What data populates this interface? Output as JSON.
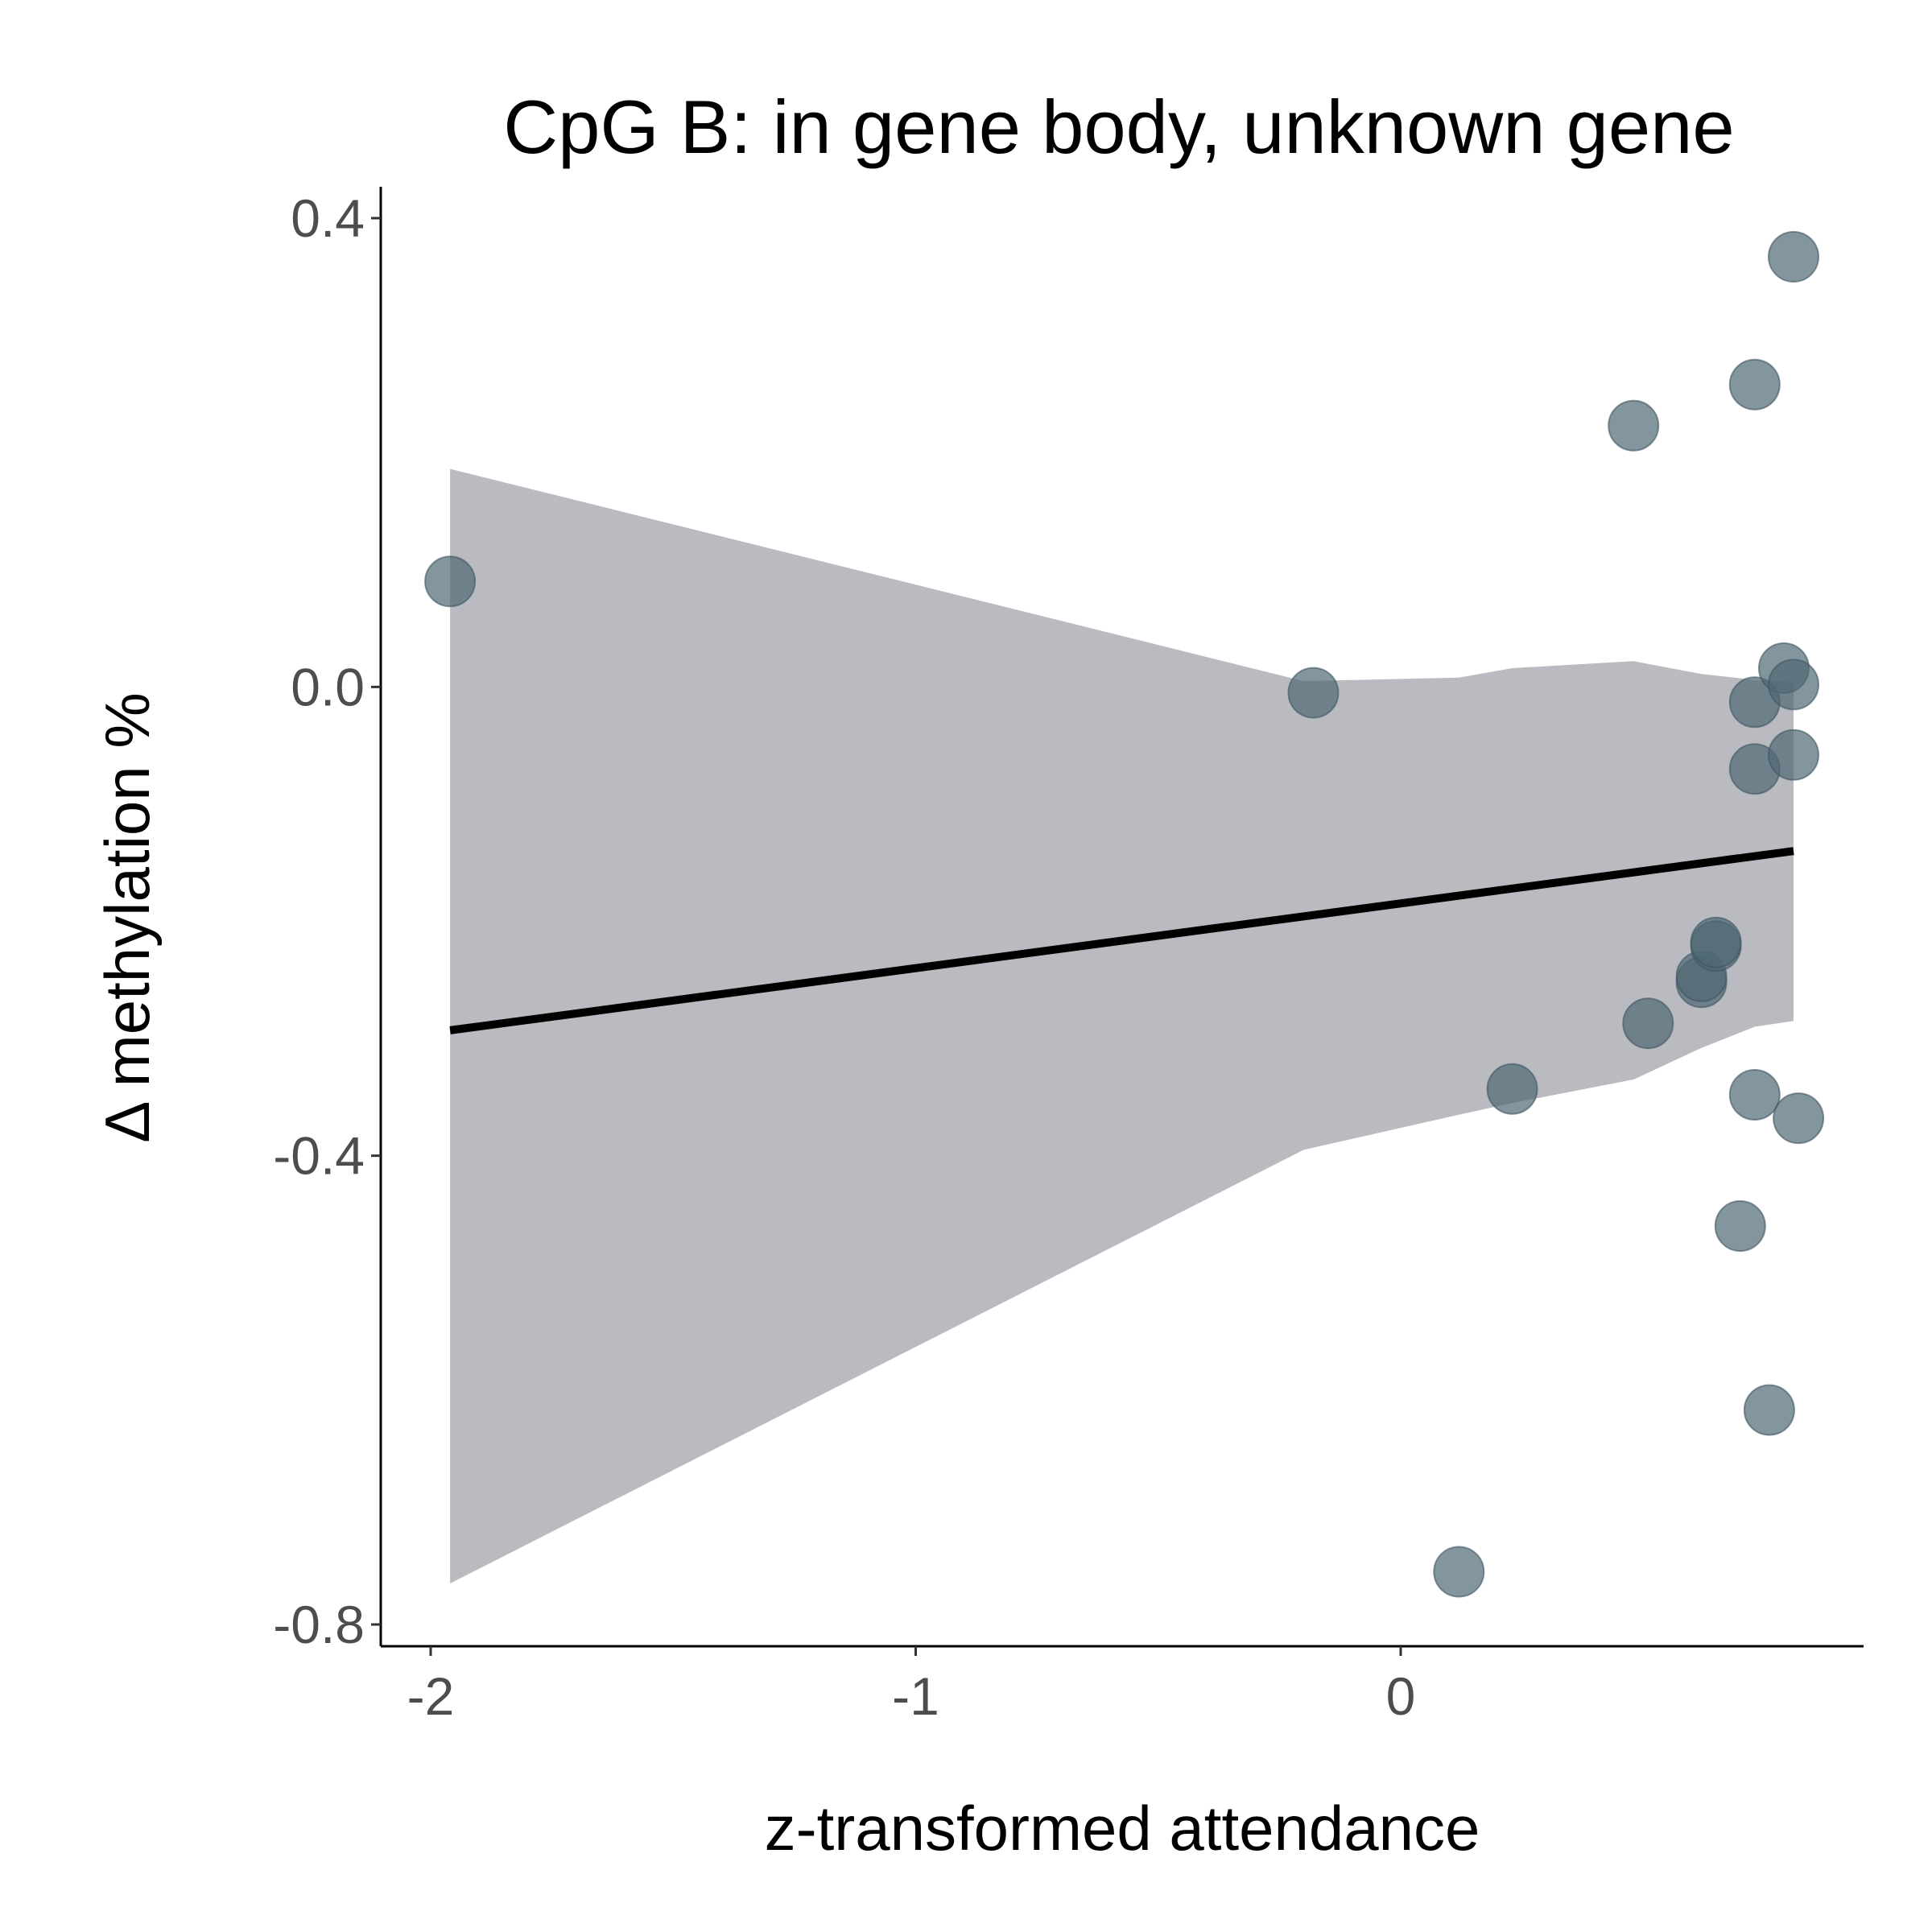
{
  "chart_data": {
    "type": "scatter",
    "title": "CpG B: in gene body, unknown gene",
    "xlabel": "z-transformed attendance",
    "ylabel": "Δ methylation %",
    "xlim": [
      -2.1,
      0.95
    ],
    "ylim": [
      -0.827,
      0.42
    ],
    "x_ticks": [
      {
        "value": -2,
        "label": "-2"
      },
      {
        "value": -1,
        "label": "-1"
      },
      {
        "value": 0,
        "label": "0"
      }
    ],
    "y_ticks": [
      {
        "value": 0.4,
        "label": "0.4"
      },
      {
        "value": 0.0,
        "label": "0.0"
      },
      {
        "value": -0.4,
        "label": "-0.4"
      },
      {
        "value": -0.8,
        "label": "-0.8"
      }
    ],
    "grid": false,
    "legend": "none",
    "colors": {
      "points": "#4f6874",
      "fit_line": "#000000",
      "confidence_band": "#babbc0"
    },
    "points": [
      {
        "x": -1.96,
        "y": 0.09
      },
      {
        "x": -0.18,
        "y": -0.005
      },
      {
        "x": 0.12,
        "y": -0.755
      },
      {
        "x": 0.23,
        "y": -0.343
      },
      {
        "x": 0.48,
        "y": 0.223
      },
      {
        "x": 0.51,
        "y": -0.287
      },
      {
        "x": 0.62,
        "y": -0.252
      },
      {
        "x": 0.62,
        "y": -0.247
      },
      {
        "x": 0.65,
        "y": -0.221
      },
      {
        "x": 0.65,
        "y": -0.218
      },
      {
        "x": 0.7,
        "y": -0.46
      },
      {
        "x": 0.73,
        "y": 0.258
      },
      {
        "x": 0.73,
        "y": -0.013
      },
      {
        "x": 0.73,
        "y": -0.07
      },
      {
        "x": 0.73,
        "y": -0.348
      },
      {
        "x": 0.76,
        "y": -0.617
      },
      {
        "x": 0.79,
        "y": 0.016
      },
      {
        "x": 0.81,
        "y": 0.367
      },
      {
        "x": 0.81,
        "y": 0.002
      },
      {
        "x": 0.81,
        "y": -0.058
      },
      {
        "x": 0.82,
        "y": -0.368
      }
    ],
    "fit_line": [
      {
        "x": -1.96,
        "y": -0.293
      },
      {
        "x": 0.81,
        "y": -0.14
      }
    ],
    "confidence_band": {
      "x": [
        -1.96,
        -0.2,
        0.12,
        0.23,
        0.48,
        0.62,
        0.73,
        0.81
      ],
      "upper": [
        0.186,
        0.005,
        0.008,
        0.016,
        0.022,
        0.011,
        0.006,
        0.004
      ],
      "lower": [
        -0.765,
        -0.395,
        -0.365,
        -0.355,
        -0.335,
        -0.308,
        -0.29,
        -0.285
      ]
    }
  }
}
